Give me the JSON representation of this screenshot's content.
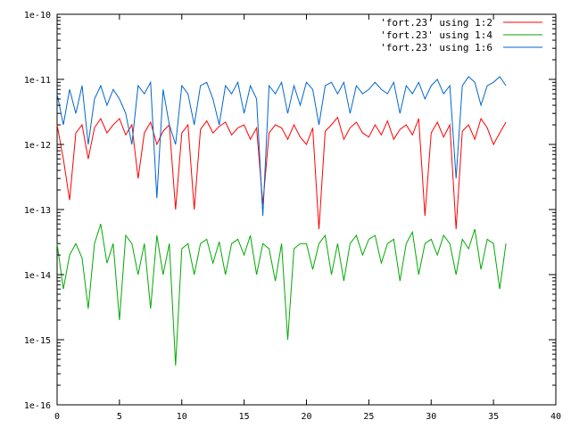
{
  "chart_data": {
    "type": "line",
    "title": "",
    "xlabel": "",
    "ylabel": "",
    "xlim": [
      0,
      40
    ],
    "ylim": [
      1e-16,
      1e-10
    ],
    "ylog": true,
    "grid": false,
    "legend_position": "top-right",
    "x_ticks": [
      0,
      5,
      10,
      15,
      20,
      25,
      30,
      35,
      40
    ],
    "x_tick_labels": [
      "0",
      "5",
      "10",
      "15",
      "20",
      "25",
      "30",
      "35",
      "40"
    ],
    "y_ticks": [
      1e-16,
      1e-15,
      1e-14,
      1e-13,
      1e-12,
      1e-11,
      1e-10
    ],
    "y_tick_labels": [
      "1e-16",
      "1e-15",
      "1e-14",
      "1e-13",
      "1e-12",
      "1e-11",
      "1e-10"
    ],
    "series": [
      {
        "name": "'fort.23' using 1:2",
        "color": "#ff0000",
        "x": [
          0.0,
          0.5,
          1.0,
          1.5,
          2.0,
          2.5,
          3.0,
          3.5,
          4.0,
          4.5,
          5.0,
          5.5,
          6.0,
          6.5,
          7.0,
          7.5,
          8.0,
          8.5,
          9.0,
          9.5,
          10.0,
          10.5,
          11.0,
          11.5,
          12.0,
          12.5,
          13.0,
          13.5,
          14.0,
          14.5,
          15.0,
          15.5,
          16.0,
          16.5,
          17.0,
          17.5,
          18.0,
          18.5,
          19.0,
          19.5,
          20.0,
          20.5,
          21.0,
          21.5,
          22.0,
          22.5,
          23.0,
          23.5,
          24.0,
          24.5,
          25.0,
          25.5,
          26.0,
          26.5,
          27.0,
          27.5,
          28.0,
          28.5,
          29.0,
          29.5,
          30.0,
          30.5,
          31.0,
          31.5,
          32.0,
          32.5,
          33.0,
          33.5,
          34.0,
          34.5,
          35.0,
          35.5,
          36.0
        ],
        "y": [
          2e-12,
          6e-13,
          1.4e-13,
          1.5e-12,
          2e-12,
          6e-13,
          1.8e-12,
          2.5e-12,
          1.5e-12,
          2e-12,
          2.5e-12,
          1.4e-12,
          2e-12,
          3e-13,
          1.5e-12,
          2.2e-12,
          1e-12,
          1.6e-12,
          2e-12,
          1e-13,
          1.5e-12,
          2e-12,
          1e-13,
          1.7e-12,
          2.3e-12,
          1.5e-12,
          1.9e-12,
          2.2e-12,
          1.4e-12,
          1.8e-12,
          2e-12,
          1.2e-12,
          1.8e-12,
          1.2e-13,
          1.5e-12,
          2e-12,
          1.8e-12,
          1.2e-12,
          2e-12,
          1.3e-12,
          1e-12,
          1.8e-12,
          5e-14,
          1.6e-12,
          2e-12,
          2.6e-12,
          1.2e-12,
          1.8e-12,
          2.2e-12,
          1.5e-12,
          1.3e-12,
          2e-12,
          1.4e-12,
          2.3e-12,
          1.2e-12,
          1.7e-12,
          2e-12,
          1.4e-12,
          2.5e-12,
          8e-14,
          1.5e-12,
          2.2e-12,
          1.3e-12,
          2e-12,
          5e-14,
          1.6e-12,
          2e-12,
          1.2e-12,
          2.5e-12,
          1.8e-12,
          1e-12,
          1.5e-12,
          2.2e-12
        ]
      },
      {
        "name": "'fort.23' using 1:4",
        "color": "#00aa00",
        "x": [
          0.0,
          0.5,
          1.0,
          1.5,
          2.0,
          2.5,
          3.0,
          3.5,
          4.0,
          4.5,
          5.0,
          5.5,
          6.0,
          6.5,
          7.0,
          7.5,
          8.0,
          8.5,
          9.0,
          9.5,
          10.0,
          10.5,
          11.0,
          11.5,
          12.0,
          12.5,
          13.0,
          13.5,
          14.0,
          14.5,
          15.0,
          15.5,
          16.0,
          16.5,
          17.0,
          17.5,
          18.0,
          18.5,
          19.0,
          19.5,
          20.0,
          20.5,
          21.0,
          21.5,
          22.0,
          22.5,
          23.0,
          23.5,
          24.0,
          24.5,
          25.0,
          25.5,
          26.0,
          26.5,
          27.0,
          27.5,
          28.0,
          28.5,
          29.0,
          29.5,
          30.0,
          30.5,
          31.0,
          31.5,
          32.0,
          32.5,
          33.0,
          33.5,
          34.0,
          34.5,
          35.0,
          35.5,
          36.0
        ],
        "y": [
          3e-14,
          6e-15,
          2e-14,
          3e-14,
          1.8e-14,
          3e-15,
          3e-14,
          6e-14,
          1.5e-14,
          3e-14,
          2e-15,
          4e-14,
          3e-14,
          1e-14,
          3e-14,
          3e-15,
          4e-14,
          1e-14,
          3e-14,
          4e-16,
          2.5e-14,
          3e-14,
          1e-14,
          3e-14,
          3.5e-14,
          1.5e-14,
          3.2e-14,
          1e-14,
          3e-14,
          3.5e-14,
          2e-14,
          4e-14,
          1e-14,
          3e-14,
          2.5e-14,
          8e-15,
          3e-14,
          1e-15,
          2.5e-14,
          3e-14,
          3e-14,
          1.2e-14,
          3e-14,
          4e-14,
          1e-14,
          3e-14,
          8e-15,
          3e-14,
          4e-14,
          2e-14,
          3.5e-14,
          4e-14,
          1.5e-14,
          3e-14,
          3.5e-14,
          8e-15,
          3e-14,
          4.5e-14,
          1e-14,
          3e-14,
          3.5e-14,
          2e-14,
          4e-14,
          3e-14,
          1e-14,
          3.5e-14,
          2.5e-14,
          5e-14,
          1.2e-14,
          3.5e-14,
          3e-14,
          6e-15,
          3e-14
        ]
      },
      {
        "name": "'fort.23' using 1:6",
        "color": "#0066cc",
        "x": [
          0.0,
          0.5,
          1.0,
          1.5,
          2.0,
          2.5,
          3.0,
          3.5,
          4.0,
          4.5,
          5.0,
          5.5,
          6.0,
          6.5,
          7.0,
          7.5,
          8.0,
          8.5,
          9.0,
          9.5,
          10.0,
          10.5,
          11.0,
          11.5,
          12.0,
          12.5,
          13.0,
          13.5,
          14.0,
          14.5,
          15.0,
          15.5,
          16.0,
          16.5,
          17.0,
          17.5,
          18.0,
          18.5,
          19.0,
          19.5,
          20.0,
          20.5,
          21.0,
          21.5,
          22.0,
          22.5,
          23.0,
          23.5,
          24.0,
          24.5,
          25.0,
          25.5,
          26.0,
          26.5,
          27.0,
          27.5,
          28.0,
          28.5,
          29.0,
          29.5,
          30.0,
          30.5,
          31.0,
          31.5,
          32.0,
          32.5,
          33.0,
          33.5,
          34.0,
          34.5,
          35.0,
          35.5,
          36.0
        ],
        "y": [
          6e-12,
          2e-12,
          7e-12,
          3e-12,
          8e-12,
          1e-12,
          5e-12,
          8e-12,
          4e-12,
          7e-12,
          5e-12,
          3e-12,
          1e-12,
          8e-12,
          6e-12,
          9e-12,
          1.5e-13,
          7e-12,
          2e-12,
          1e-12,
          8e-12,
          6e-12,
          2e-12,
          8e-12,
          9e-12,
          5e-12,
          2e-12,
          8e-12,
          6e-12,
          9e-12,
          3e-12,
          8e-12,
          5e-12,
          8e-14,
          8e-12,
          6e-12,
          9e-12,
          3e-12,
          8e-12,
          4e-12,
          9e-12,
          7e-12,
          2e-12,
          8e-12,
          9e-12,
          6e-12,
          9e-12,
          3e-12,
          8e-12,
          6e-12,
          7e-12,
          9e-12,
          7e-12,
          6e-12,
          9e-12,
          3e-12,
          8e-12,
          6e-12,
          9e-12,
          5e-12,
          8e-12,
          1e-11,
          6e-12,
          8e-12,
          3e-13,
          8e-12,
          1.1e-11,
          9e-12,
          4e-12,
          8e-12,
          9e-12,
          1.1e-11,
          8e-12
        ]
      }
    ]
  }
}
